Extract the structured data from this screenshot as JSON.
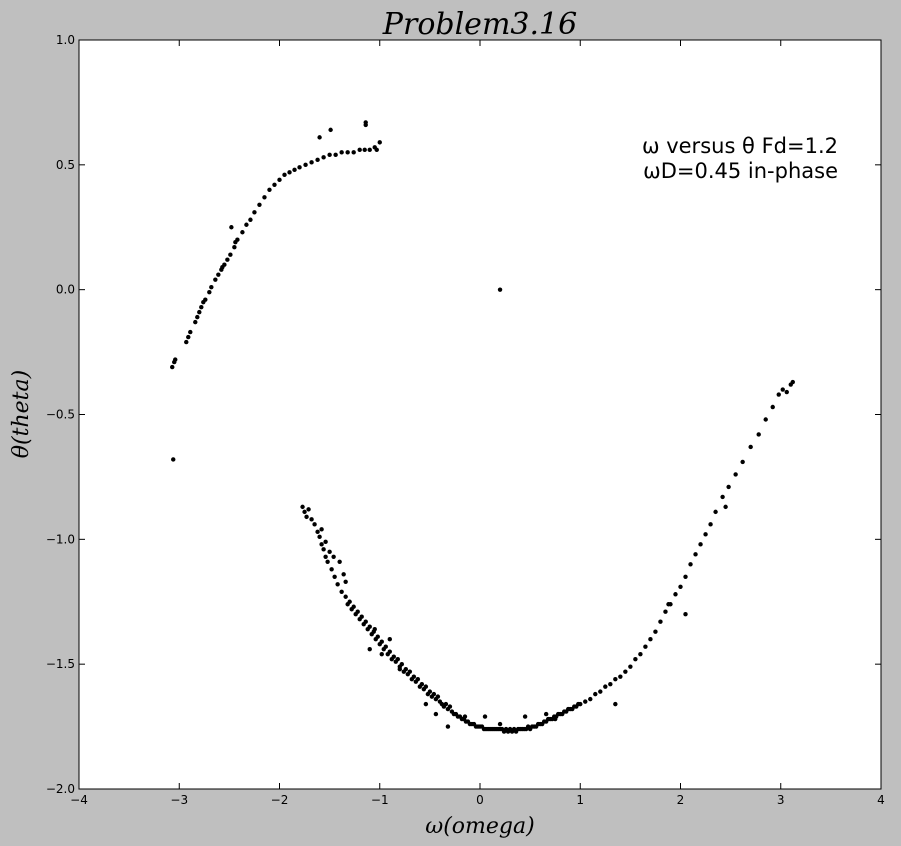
{
  "chart_data": {
    "type": "scatter",
    "title": "Problem3.16",
    "xlabel": "ω(omega)",
    "ylabel": "θ(theta)",
    "xlim": [
      -4,
      4
    ],
    "ylim": [
      -2.0,
      1.0
    ],
    "xticks": [
      -4,
      -3,
      -2,
      -1,
      0,
      1,
      2,
      3,
      4
    ],
    "xtick_labels": [
      "−4",
      "−3",
      "−2",
      "−1",
      "0",
      "1",
      "2",
      "3",
      "4"
    ],
    "yticks": [
      -2.0,
      -1.5,
      -1.0,
      -0.5,
      0.0,
      0.5,
      1.0
    ],
    "ytick_labels": [
      "−2.0",
      "−1.5",
      "−1.0",
      "−0.5",
      "0.0",
      "0.5",
      "1.0"
    ],
    "grid": false,
    "marker_color": "#000000",
    "annotations": [
      "ω versus θ   Fd=1.2",
      "ωD=0.45   in-phase"
    ],
    "series": [
      {
        "points": [
          [
            -3.07,
            -0.31
          ],
          [
            -3.05,
            -0.29
          ],
          [
            -3.04,
            -0.28
          ],
          [
            -2.93,
            -0.21
          ],
          [
            -2.91,
            -0.19
          ],
          [
            -2.89,
            -0.17
          ],
          [
            -2.84,
            -0.13
          ],
          [
            -2.82,
            -0.11
          ],
          [
            -2.8,
            -0.09
          ],
          [
            -2.78,
            -0.07
          ],
          [
            -2.76,
            -0.05
          ],
          [
            -2.74,
            -0.04
          ],
          [
            -2.7,
            -0.01
          ],
          [
            -2.68,
            0.01
          ],
          [
            -2.64,
            0.04
          ],
          [
            -2.61,
            0.06
          ],
          [
            -2.58,
            0.08
          ],
          [
            -2.55,
            0.1
          ],
          [
            -2.52,
            0.12
          ],
          [
            -2.49,
            0.14
          ],
          [
            -2.45,
            0.17
          ],
          [
            -2.42,
            0.2
          ],
          [
            -2.37,
            0.23
          ],
          [
            -2.33,
            0.26
          ],
          [
            -2.29,
            0.28
          ],
          [
            -2.25,
            0.31
          ],
          [
            -2.2,
            0.34
          ],
          [
            -2.15,
            0.37
          ],
          [
            -2.1,
            0.4
          ],
          [
            -2.05,
            0.42
          ],
          [
            -2.0,
            0.44
          ],
          [
            -1.95,
            0.46
          ],
          [
            -1.9,
            0.47
          ],
          [
            -1.85,
            0.48
          ],
          [
            -1.8,
            0.49
          ],
          [
            -1.74,
            0.5
          ],
          [
            -1.68,
            0.51
          ],
          [
            -1.62,
            0.52
          ],
          [
            -1.56,
            0.53
          ],
          [
            -1.5,
            0.54
          ],
          [
            -1.44,
            0.54
          ],
          [
            -1.38,
            0.55
          ],
          [
            -1.32,
            0.55
          ],
          [
            -1.26,
            0.55
          ],
          [
            -1.2,
            0.56
          ],
          [
            -1.15,
            0.56
          ],
          [
            -1.1,
            0.56
          ],
          [
            -1.05,
            0.57
          ],
          [
            -1.0,
            0.59
          ],
          [
            -1.6,
            0.61
          ],
          [
            -1.49,
            0.64
          ],
          [
            -1.14,
            0.67
          ],
          [
            -1.14,
            0.66
          ],
          [
            -2.57,
            0.09
          ],
          [
            -2.48,
            0.25
          ],
          [
            -2.44,
            0.19
          ],
          [
            -1.03,
            0.56
          ],
          [
            -3.06,
            -0.68
          ],
          [
            0.2,
            0.0
          ],
          [
            -1.77,
            -0.87
          ],
          [
            -1.75,
            -0.89
          ],
          [
            -1.73,
            -0.91
          ],
          [
            -1.71,
            -0.88
          ],
          [
            -1.68,
            -0.92
          ],
          [
            -1.65,
            -0.94
          ],
          [
            -1.62,
            -0.97
          ],
          [
            -1.6,
            -0.99
          ],
          [
            -1.58,
            -1.02
          ],
          [
            -1.56,
            -1.04
          ],
          [
            -1.54,
            -1.07
          ],
          [
            -1.52,
            -1.09
          ],
          [
            -1.48,
            -1.12
          ],
          [
            -1.45,
            -1.15
          ],
          [
            -1.42,
            -1.18
          ],
          [
            -1.4,
            -1.09
          ],
          [
            -1.38,
            -1.21
          ],
          [
            -1.36,
            -1.14
          ],
          [
            -1.34,
            -1.23
          ],
          [
            -1.32,
            -1.26
          ],
          [
            -1.3,
            -1.25
          ],
          [
            -1.28,
            -1.28
          ],
          [
            -1.26,
            -1.27
          ],
          [
            -1.24,
            -1.3
          ],
          [
            -1.22,
            -1.29
          ],
          [
            -1.2,
            -1.32
          ],
          [
            -1.18,
            -1.31
          ],
          [
            -1.16,
            -1.34
          ],
          [
            -1.14,
            -1.33
          ],
          [
            -1.12,
            -1.36
          ],
          [
            -1.1,
            -1.35
          ],
          [
            -1.08,
            -1.38
          ],
          [
            -1.06,
            -1.37
          ],
          [
            -1.04,
            -1.4
          ],
          [
            -1.02,
            -1.39
          ],
          [
            -1.0,
            -1.42
          ],
          [
            -0.98,
            -1.41
          ],
          [
            -0.96,
            -1.44
          ],
          [
            -0.94,
            -1.43
          ],
          [
            -0.92,
            -1.46
          ],
          [
            -0.9,
            -1.45
          ],
          [
            -0.88,
            -1.48
          ],
          [
            -0.86,
            -1.47
          ],
          [
            -0.84,
            -1.49
          ],
          [
            -0.82,
            -1.48
          ],
          [
            -0.8,
            -1.51
          ],
          [
            -0.78,
            -1.5
          ],
          [
            -0.76,
            -1.53
          ],
          [
            -0.74,
            -1.52
          ],
          [
            -0.72,
            -1.54
          ],
          [
            -0.7,
            -1.53
          ],
          [
            -0.68,
            -1.56
          ],
          [
            -0.66,
            -1.55
          ],
          [
            -0.64,
            -1.57
          ],
          [
            -0.62,
            -1.56
          ],
          [
            -0.6,
            -1.59
          ],
          [
            -0.58,
            -1.58
          ],
          [
            -0.56,
            -1.6
          ],
          [
            -0.54,
            -1.59
          ],
          [
            -0.52,
            -1.62
          ],
          [
            -0.5,
            -1.61
          ],
          [
            -0.48,
            -1.63
          ],
          [
            -0.46,
            -1.62
          ],
          [
            -0.44,
            -1.64
          ],
          [
            -0.42,
            -1.63
          ],
          [
            -0.4,
            -1.65
          ],
          [
            -0.38,
            -1.66
          ],
          [
            -0.36,
            -1.67
          ],
          [
            -0.34,
            -1.66
          ],
          [
            -0.32,
            -1.68
          ],
          [
            -0.3,
            -1.67
          ],
          [
            -0.28,
            -1.69
          ],
          [
            -0.26,
            -1.7
          ],
          [
            -0.24,
            -1.7
          ],
          [
            -0.22,
            -1.71
          ],
          [
            -0.2,
            -1.71
          ],
          [
            -0.18,
            -1.72
          ],
          [
            -0.16,
            -1.72
          ],
          [
            -0.14,
            -1.73
          ],
          [
            -0.12,
            -1.73
          ],
          [
            -0.1,
            -1.74
          ],
          [
            -0.08,
            -1.74
          ],
          [
            -0.06,
            -1.74
          ],
          [
            -0.04,
            -1.75
          ],
          [
            -0.02,
            -1.75
          ],
          [
            0.0,
            -1.75
          ],
          [
            0.02,
            -1.75
          ],
          [
            0.04,
            -1.76
          ],
          [
            0.06,
            -1.76
          ],
          [
            0.08,
            -1.76
          ],
          [
            0.1,
            -1.76
          ],
          [
            0.12,
            -1.76
          ],
          [
            0.14,
            -1.76
          ],
          [
            0.16,
            -1.76
          ],
          [
            0.18,
            -1.76
          ],
          [
            0.2,
            -1.76
          ],
          [
            0.22,
            -1.76
          ],
          [
            0.24,
            -1.77
          ],
          [
            0.26,
            -1.76
          ],
          [
            0.28,
            -1.77
          ],
          [
            0.3,
            -1.76
          ],
          [
            0.32,
            -1.77
          ],
          [
            0.34,
            -1.76
          ],
          [
            0.36,
            -1.77
          ],
          [
            0.38,
            -1.76
          ],
          [
            0.4,
            -1.76
          ],
          [
            0.42,
            -1.76
          ],
          [
            0.44,
            -1.76
          ],
          [
            0.46,
            -1.76
          ],
          [
            0.48,
            -1.75
          ],
          [
            0.5,
            -1.76
          ],
          [
            0.52,
            -1.75
          ],
          [
            0.54,
            -1.75
          ],
          [
            0.56,
            -1.75
          ],
          [
            0.58,
            -1.74
          ],
          [
            0.6,
            -1.74
          ],
          [
            0.62,
            -1.74
          ],
          [
            0.64,
            -1.73
          ],
          [
            0.66,
            -1.73
          ],
          [
            0.68,
            -1.72
          ],
          [
            0.7,
            -1.72
          ],
          [
            0.72,
            -1.72
          ],
          [
            0.74,
            -1.71
          ],
          [
            0.76,
            -1.71
          ],
          [
            0.78,
            -1.7
          ],
          [
            0.8,
            -1.7
          ],
          [
            0.82,
            -1.7
          ],
          [
            0.84,
            -1.69
          ],
          [
            0.86,
            -1.69
          ],
          [
            0.88,
            -1.68
          ],
          [
            0.9,
            -1.68
          ],
          [
            0.92,
            -1.68
          ],
          [
            0.94,
            -1.67
          ],
          [
            0.96,
            -1.67
          ],
          [
            0.98,
            -1.66
          ],
          [
            1.0,
            -1.66
          ],
          [
            1.05,
            -1.65
          ],
          [
            1.1,
            -1.64
          ],
          [
            1.15,
            -1.62
          ],
          [
            1.2,
            -1.61
          ],
          [
            1.25,
            -1.59
          ],
          [
            1.3,
            -1.58
          ],
          [
            1.35,
            -1.56
          ],
          [
            1.4,
            -1.55
          ],
          [
            1.45,
            -1.53
          ],
          [
            1.5,
            -1.51
          ],
          [
            1.55,
            -1.48
          ],
          [
            1.6,
            -1.46
          ],
          [
            1.65,
            -1.43
          ],
          [
            1.7,
            -1.4
          ],
          [
            1.75,
            -1.37
          ],
          [
            1.8,
            -1.33
          ],
          [
            1.85,
            -1.29
          ],
          [
            1.9,
            -1.26
          ],
          [
            1.95,
            -1.22
          ],
          [
            2.0,
            -1.19
          ],
          [
            2.05,
            -1.15
          ],
          [
            2.1,
            -1.1
          ],
          [
            2.15,
            -1.06
          ],
          [
            2.2,
            -1.02
          ],
          [
            2.25,
            -0.98
          ],
          [
            2.3,
            -0.94
          ],
          [
            2.35,
            -0.89
          ],
          [
            2.42,
            -0.83
          ],
          [
            2.48,
            -0.79
          ],
          [
            2.55,
            -0.74
          ],
          [
            2.62,
            -0.69
          ],
          [
            2.7,
            -0.63
          ],
          [
            2.78,
            -0.58
          ],
          [
            2.85,
            -0.52
          ],
          [
            2.92,
            -0.47
          ],
          [
            2.98,
            -0.42
          ],
          [
            3.02,
            -0.4
          ],
          [
            3.06,
            -0.41
          ],
          [
            3.1,
            -0.38
          ],
          [
            3.12,
            -0.37
          ],
          [
            -1.58,
            -0.96
          ],
          [
            -1.54,
            -1.01
          ],
          [
            -1.5,
            -1.05
          ],
          [
            -1.46,
            -1.07
          ],
          [
            -1.34,
            -1.17
          ],
          [
            -1.05,
            -1.36
          ],
          [
            -0.9,
            -1.4
          ],
          [
            -0.8,
            -1.52
          ],
          [
            -0.54,
            -1.66
          ],
          [
            -0.44,
            -1.7
          ],
          [
            -0.32,
            -1.75
          ],
          [
            -0.15,
            -1.71
          ],
          [
            0.05,
            -1.71
          ],
          [
            0.2,
            -1.74
          ],
          [
            0.45,
            -1.71
          ],
          [
            0.75,
            -1.72
          ],
          [
            1.35,
            -1.66
          ],
          [
            2.05,
            -1.3
          ],
          [
            2.45,
            -0.87
          ],
          [
            -1.1,
            -1.44
          ],
          [
            -0.98,
            -1.46
          ],
          [
            1.88,
            -1.26
          ],
          [
            0.66,
            -1.7
          ]
        ]
      }
    ]
  }
}
